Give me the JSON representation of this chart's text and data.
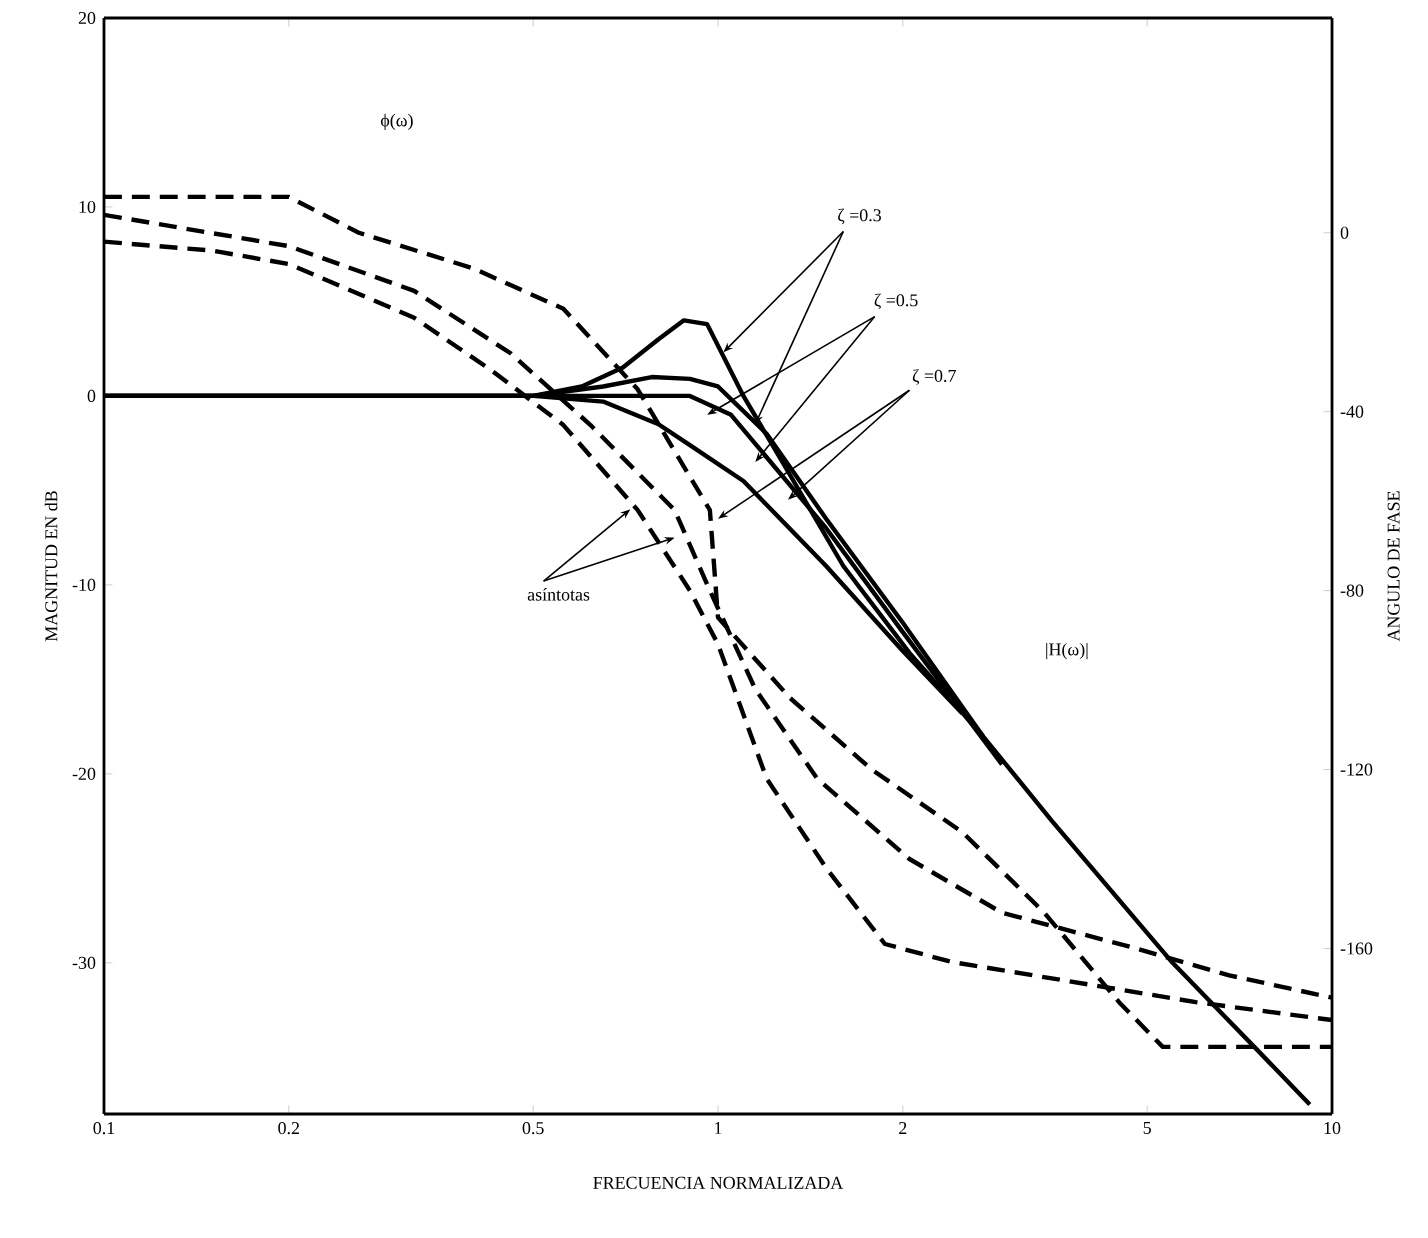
{
  "chart_data": {
    "type": "line",
    "xlabel": "FRECUENCIA NORMALIZADA",
    "ylabel": "MAGNITUD EN dB",
    "y2label": "ANGULO DE FASE",
    "log": "x",
    "xlim": [
      0.1,
      10
    ],
    "xticks": [
      0.1,
      0.2,
      0.5,
      1,
      2,
      5,
      10
    ],
    "ylim": [
      -38,
      20
    ],
    "yticks": [
      20,
      10,
      0,
      -10,
      -20,
      -30
    ],
    "y2lim": [
      -197,
      48
    ],
    "y2ticks": [
      0,
      -40,
      -80,
      -120,
      -160
    ],
    "marker": "none",
    "series": [
      {
        "color": "#000000",
        "line_style": "solid",
        "x": [
          0.1,
          0.5,
          0.6,
          0.7,
          0.8,
          0.88,
          0.96,
          1.1,
          1.3,
          1.6,
          2.05,
          2.7,
          3.5,
          5.5,
          7.5,
          9.2
        ],
        "values": [
          0,
          0,
          0.5,
          1.5,
          3,
          4,
          3.8,
          0,
          -4,
          -9,
          -13.6,
          -18,
          -22.5,
          -30,
          -34.5,
          -37.5
        ]
      },
      {
        "color": "#000000",
        "line_style": "solid",
        "x": [
          0.1,
          0.5,
          0.65,
          0.78,
          0.9,
          1.0,
          1.2,
          1.5,
          2.0,
          2.7
        ],
        "values": [
          0,
          0,
          0.5,
          1,
          0.9,
          0.5,
          -2,
          -6.5,
          -12,
          -18
        ]
      },
      {
        "color": "#000000",
        "line_style": "solid",
        "x": [
          0.1,
          0.5,
          0.65,
          0.8,
          0.9,
          1.1,
          1.5,
          2.0,
          2.5
        ],
        "values": [
          0,
          0,
          -0.3,
          -1.5,
          -2.6,
          -4.5,
          -9,
          -13.5,
          -16.8
        ]
      },
      {
        "color": "#000000",
        "line_style": "solid",
        "x": [
          0.1,
          0.9,
          1.05,
          1.5,
          2.0,
          2.9
        ],
        "values": [
          0,
          0,
          -1,
          -7,
          -12.5,
          -19.5
        ]
      },
      {
        "color": "#000000",
        "line_style": "dashed",
        "axis": "y2",
        "x": [
          0.1,
          0.2,
          0.26,
          0.4,
          0.56,
          0.74,
          0.97,
          1.0,
          1.31,
          1.78,
          2.5,
          3.4,
          4.5,
          5.3,
          10
        ],
        "values": [
          8,
          8,
          0,
          -8,
          -17,
          -35,
          -62,
          -86,
          -104,
          -120,
          -134,
          -152,
          -172,
          -182,
          -182
        ]
      },
      {
        "color": "#000000",
        "line_style": "dashed",
        "axis": "y2",
        "x": [
          0.1,
          0.2,
          0.32,
          0.46,
          0.62,
          0.85,
          0.97,
          1.15,
          1.45,
          2.05,
          2.9,
          4.8,
          6.8,
          10
        ],
        "values": [
          4,
          -3,
          -13,
          -27,
          -43,
          -62,
          -80,
          -102,
          -122,
          -140,
          -152,
          -160,
          -166,
          -171
        ]
      },
      {
        "color": "#000000",
        "line_style": "dashed",
        "axis": "y2",
        "x": [
          0.1,
          0.15,
          0.2,
          0.32,
          0.43,
          0.56,
          0.74,
          0.9,
          1.0,
          1.2,
          1.5,
          1.87,
          2.4,
          4.0,
          6.0,
          10
        ],
        "values": [
          -2,
          -4,
          -7,
          -19,
          -31,
          -43,
          -62,
          -80,
          -92,
          -122,
          -142,
          -159,
          -163,
          -168,
          -172,
          -176
        ]
      }
    ],
    "annotations": [
      "ϕ(ω)",
      {
        "text": "ζ =0.3",
        "x": 1.02,
        "y": 2.3
      },
      {
        "text": "ζ =0.5",
        "x": 0.96,
        "y": -1.0
      },
      {
        "text": "ζ =0.7",
        "x": 1.0,
        "y": -6.5
      },
      {
        "text": "asíntotas",
        "x": 0.72,
        "y": -6.0
      },
      "|H(ω)|"
    ]
  }
}
